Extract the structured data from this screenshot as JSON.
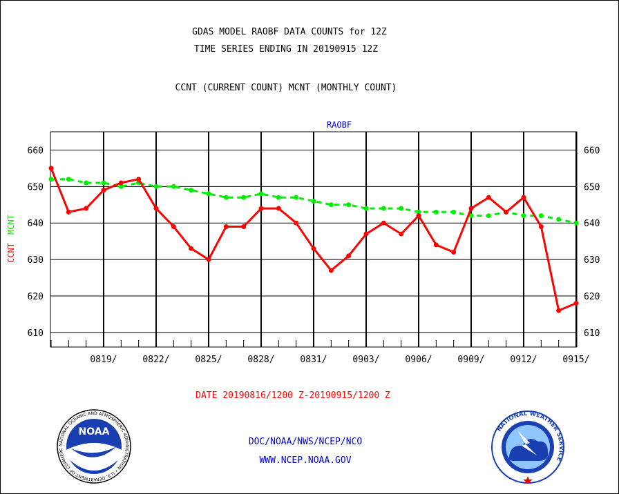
{
  "header": {
    "title_line1": "GDAS MODEL RAOBF DATA COUNTS for 12Z",
    "title_line2": "TIME SERIES ENDING IN 20190915 12Z",
    "subtitle": "CCNT (CURRENT COUNT) MCNT (MONTHLY COUNT)"
  },
  "footer": {
    "date_range": "DATE 20190816/1200 Z-20190915/1200 Z",
    "org": "DOC/NOAA/NWS/NCEP/NCO",
    "url": "WWW.NCEP.NOAA.GOV"
  },
  "logos": {
    "noaa_text": "NOAA",
    "noaa_ring": "NATIONAL OCEANIC AND ATMOSPHERIC ADMINISTRATION • U.S. DEPARTMENT OF COMMERCE •",
    "nws_ring": "NATIONAL WEATHER SERVICE"
  },
  "colors": {
    "ccnt": "#ff0000",
    "mcnt": "#00ee00",
    "panel_title": "#0000cc",
    "footer_date": "#ff0000",
    "footer_org": "#0000cc"
  },
  "chart_data": {
    "type": "line",
    "title": "RAOBF",
    "ylabel_parts": [
      "CCNT",
      "MCNT"
    ],
    "ylim": [
      606,
      665
    ],
    "yticks": [
      610,
      620,
      630,
      640,
      650,
      660
    ],
    "x_day_range": [
      1,
      31
    ],
    "x_ticks": [
      {
        "day": 4,
        "label": "0819/"
      },
      {
        "day": 7,
        "label": "0822/"
      },
      {
        "day": 10,
        "label": "0825/"
      },
      {
        "day": 13,
        "label": "0828/"
      },
      {
        "day": 16,
        "label": "0831/"
      },
      {
        "day": 19,
        "label": "0903/"
      },
      {
        "day": 22,
        "label": "0906/"
      },
      {
        "day": 25,
        "label": "0909/"
      },
      {
        "day": 28,
        "label": "0912/"
      },
      {
        "day": 31,
        "label": "0915/"
      }
    ],
    "grid": true,
    "series": [
      {
        "name": "CCNT",
        "values": [
          655,
          643,
          644,
          649,
          651,
          652,
          644,
          639,
          633,
          630,
          639,
          639,
          644,
          644,
          640,
          633,
          627,
          631,
          637,
          640,
          637,
          642,
          634,
          632,
          644,
          647,
          643,
          647,
          639,
          616,
          618
        ]
      },
      {
        "name": "MCNT",
        "values": [
          652,
          652,
          651,
          651,
          650,
          651,
          650,
          650,
          649,
          648,
          647,
          647,
          648,
          647,
          647,
          646,
          645,
          645,
          644,
          644,
          644,
          643,
          643,
          643,
          642,
          642,
          643,
          642,
          642,
          641,
          640
        ]
      }
    ]
  }
}
